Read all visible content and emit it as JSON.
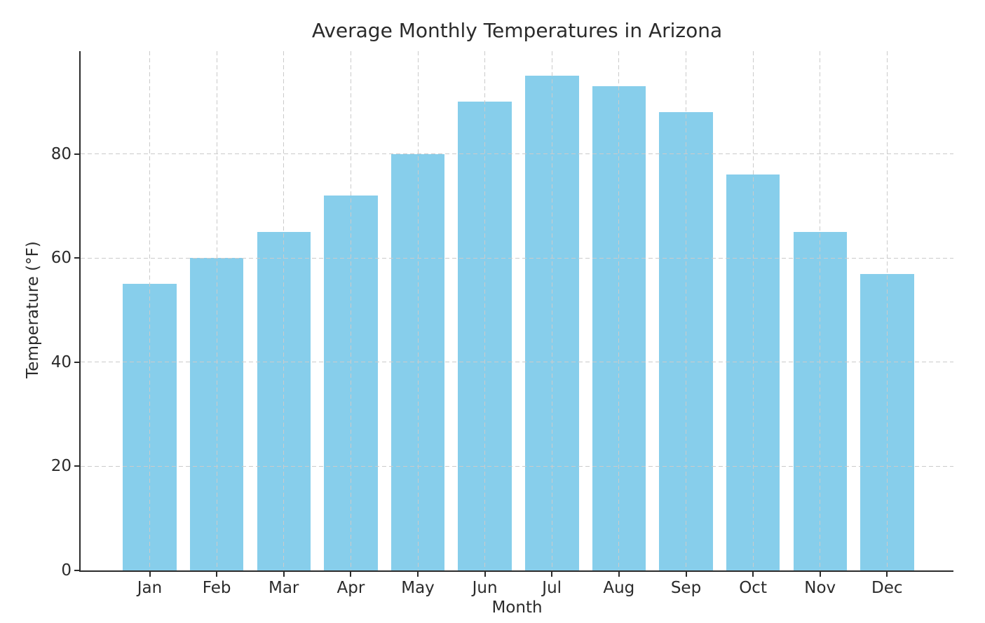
{
  "chart_data": {
    "type": "bar",
    "title": "Average Monthly Temperatures in Arizona",
    "xlabel": "Month",
    "ylabel": "Temperature (°F)",
    "categories": [
      "Jan",
      "Feb",
      "Mar",
      "Apr",
      "May",
      "Jun",
      "Jul",
      "Aug",
      "Sep",
      "Oct",
      "Nov",
      "Dec"
    ],
    "values": [
      55,
      60,
      65,
      72,
      80,
      90,
      95,
      93,
      88,
      76,
      65,
      57
    ],
    "yticks": [
      0,
      20,
      40,
      60,
      80
    ],
    "ylim": [
      0,
      99.75
    ],
    "xlim": [
      -1.03,
      11.99
    ],
    "bar_width_fraction": 0.8,
    "grid": "on",
    "grid_style": "dashed, horizontal and vertical, drawn above bars",
    "legend": "none",
    "colors": {
      "bar": "#87CEEB",
      "grid": "#cbcbcb",
      "spine": "#2b2b2b",
      "text": "#2b2b2b",
      "background": "#ffffff"
    }
  }
}
